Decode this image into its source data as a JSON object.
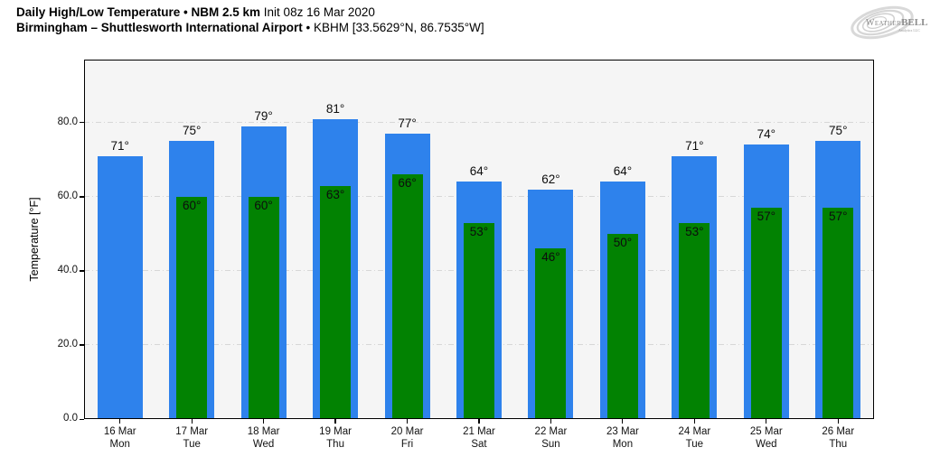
{
  "header": {
    "line1_bold": "Daily High/Low Temperature • NBM 2.5 km",
    "line1_regular": " Init 08z 16 Mar 2020",
    "line2_bold": "Birmingham – Shuttlesworth International Airport",
    "line2_regular": " • KBHM [33.5629°N, 86.7535°W]"
  },
  "logo": {
    "brand_weather": "Weather",
    "brand_bell": "BELL",
    "brand_sub": "Analytics LLC"
  },
  "chart_data": {
    "type": "bar",
    "title": "Daily High/Low Temperature • NBM 2.5 km Init 08z 16 Mar 2020",
    "subtitle": "Birmingham – Shuttlesworth International Airport • KBHM [33.5629°N, 86.7535°W]",
    "ylabel": "Temperature [°F]",
    "ylim": [
      0,
      97
    ],
    "yticks": [
      0,
      20,
      40,
      60,
      80
    ],
    "ytick_labels": [
      "0.0",
      "20.0",
      "40.0",
      "60.0",
      "80.0"
    ],
    "grid": {
      "horizontal": true,
      "style": "dash-dot",
      "color": "#d7d7d7"
    },
    "legend_position": "none",
    "value_suffix": "°",
    "categories": [
      {
        "date": "16 Mar",
        "day": "Mon"
      },
      {
        "date": "17 Mar",
        "day": "Tue"
      },
      {
        "date": "18 Mar",
        "day": "Wed"
      },
      {
        "date": "19 Mar",
        "day": "Thu"
      },
      {
        "date": "20 Mar",
        "day": "Fri"
      },
      {
        "date": "21 Mar",
        "day": "Sat"
      },
      {
        "date": "22 Mar",
        "day": "Sun"
      },
      {
        "date": "23 Mar",
        "day": "Mon"
      },
      {
        "date": "24 Mar",
        "day": "Tue"
      },
      {
        "date": "25 Mar",
        "day": "Wed"
      },
      {
        "date": "26 Mar",
        "day": "Thu"
      }
    ],
    "series": [
      {
        "name": "Daily High",
        "color": "#2e82ec",
        "values": [
          71,
          75,
          79,
          81,
          77,
          64,
          62,
          64,
          71,
          74,
          75
        ]
      },
      {
        "name": "Daily Low",
        "color": "#028202",
        "values": [
          null,
          60,
          60,
          63,
          66,
          53,
          46,
          50,
          53,
          57,
          57
        ]
      }
    ]
  },
  "colors": {
    "high_bar": "#2e82ec",
    "low_bar": "#028202",
    "plot_background": "#f5f5f5",
    "grid": "#d7d7d7",
    "axis": "#000000",
    "text": "#111111"
  }
}
